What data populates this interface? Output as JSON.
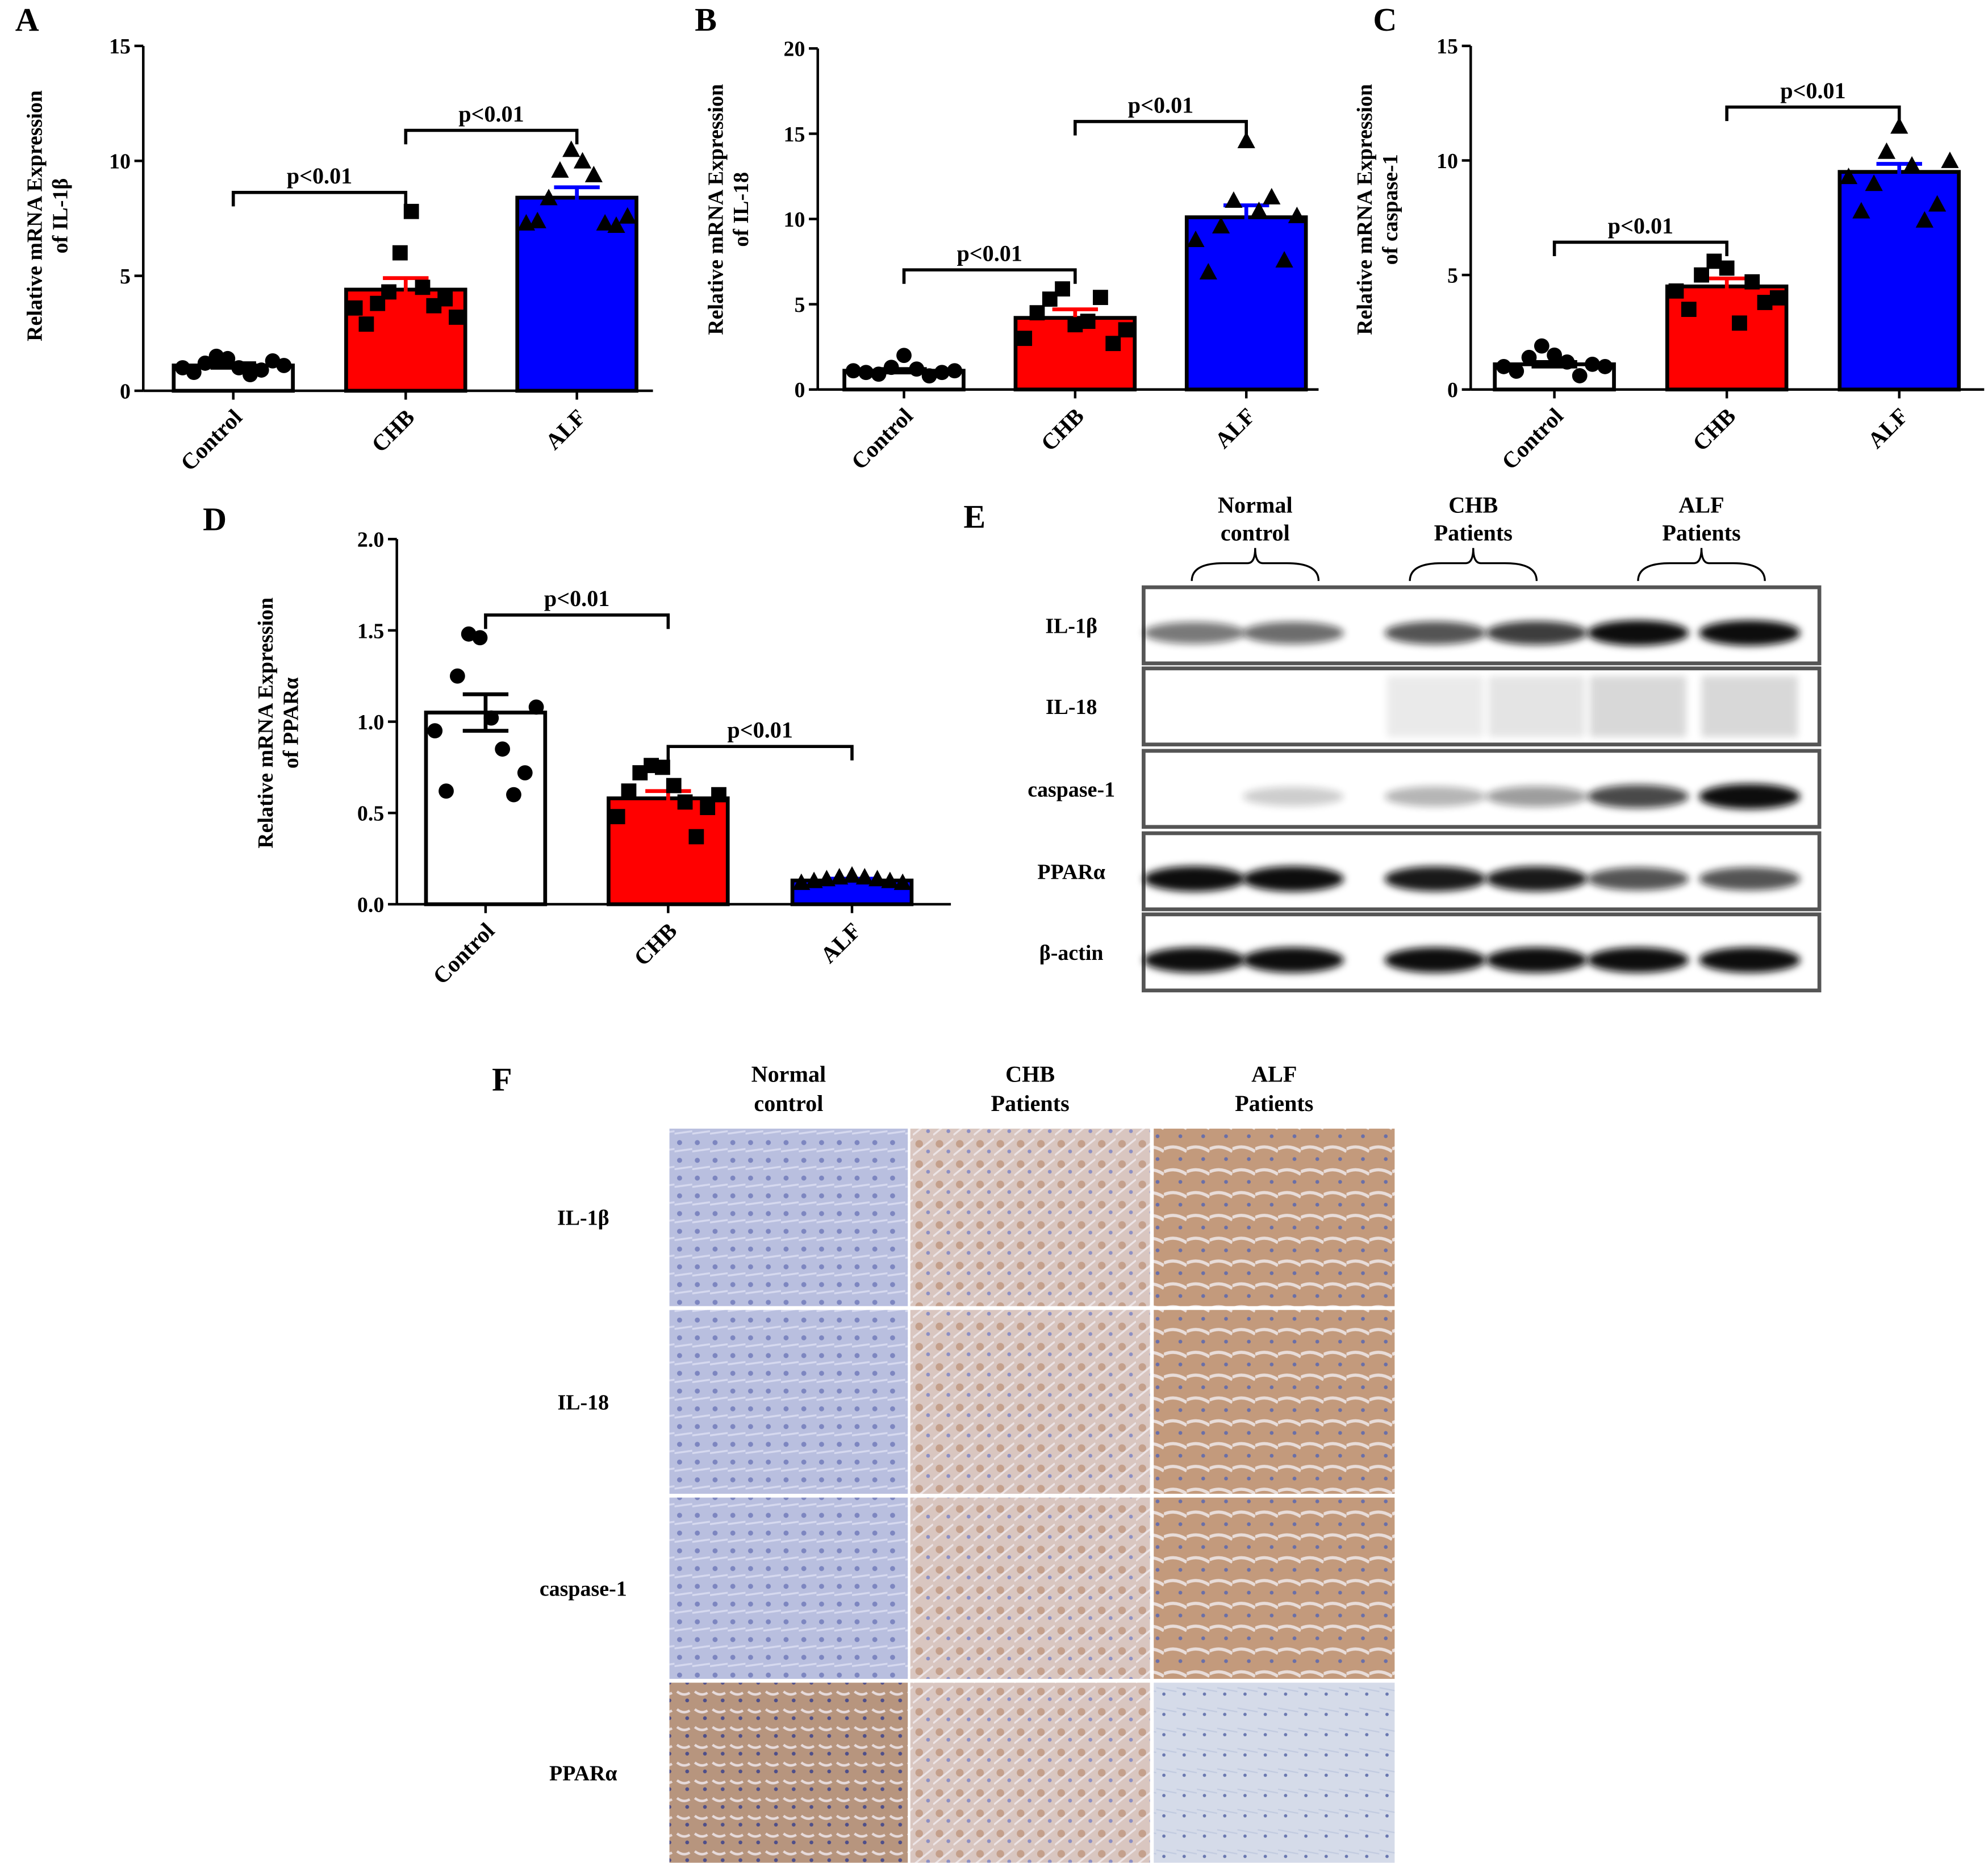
{
  "chart_data": [
    {
      "type": "bar",
      "label": "A",
      "ylabel": [
        "Relative mRNA Expression",
        "of IL-1β"
      ],
      "categories": [
        "Control",
        "CHB",
        "ALF"
      ],
      "values": [
        1.1,
        4.4,
        8.4
      ],
      "errors": [
        0.1,
        0.5,
        0.45
      ],
      "colors": [
        "#ffffff",
        "#ff0000",
        "#0000ff"
      ],
      "markers": [
        "circle",
        "square",
        "triangle"
      ],
      "points": [
        [
          1.0,
          0.8,
          1.2,
          1.5,
          1.4,
          1.0,
          0.7,
          0.9,
          1.3,
          1.1
        ],
        [
          3.6,
          2.9,
          3.8,
          4.3,
          6.0,
          7.8,
          4.5,
          3.7,
          4.0,
          3.2
        ],
        [
          7.3,
          7.4,
          8.4,
          9.6,
          10.5,
          10.0,
          9.4,
          7.3,
          7.2,
          7.6
        ]
      ],
      "ylim": [
        0,
        15
      ],
      "yticks": [
        0,
        5,
        10,
        15
      ],
      "annotations": [
        {
          "between": [
            0,
            1
          ],
          "label": "p<0.01"
        },
        {
          "between": [
            1,
            2
          ],
          "label": "p<0.01"
        }
      ]
    },
    {
      "type": "bar",
      "label": "B",
      "ylabel": [
        "Relative mRNA Expression",
        "of IL-18"
      ],
      "categories": [
        "Control",
        "CHB",
        "ALF"
      ],
      "values": [
        1.1,
        4.2,
        10.1
      ],
      "errors": [
        0.1,
        0.5,
        0.7
      ],
      "colors": [
        "#ffffff",
        "#ff0000",
        "#0000ff"
      ],
      "markers": [
        "circle",
        "square",
        "triangle"
      ],
      "points": [
        [
          1.1,
          1.0,
          0.9,
          1.3,
          2.0,
          1.2,
          0.8,
          1.0,
          1.1
        ],
        [
          3.0,
          4.5,
          5.3,
          5.9,
          3.8,
          4.0,
          5.4,
          2.7,
          3.5
        ],
        [
          8.8,
          6.9,
          9.6,
          11.1,
          14.6,
          10.5,
          11.3,
          7.6,
          10.2
        ]
      ],
      "ylim": [
        0,
        20
      ],
      "yticks": [
        0,
        5,
        10,
        15,
        20
      ],
      "annotations": [
        {
          "between": [
            0,
            1
          ],
          "label": "p<0.01"
        },
        {
          "between": [
            1,
            2
          ],
          "label": "p<0.01"
        }
      ]
    },
    {
      "type": "bar",
      "label": "C",
      "ylabel": [
        "Relative mRNA Expression",
        "of caspase-1"
      ],
      "categories": [
        "Control",
        "CHB",
        "ALF"
      ],
      "values": [
        1.1,
        4.5,
        9.5
      ],
      "errors": [
        0.1,
        0.35,
        0.35
      ],
      "colors": [
        "#ffffff",
        "#ff0000",
        "#0000ff"
      ],
      "markers": [
        "circle",
        "square",
        "triangle"
      ],
      "points": [
        [
          1.0,
          0.8,
          1.4,
          1.9,
          1.5,
          1.2,
          0.6,
          1.1,
          1.0
        ],
        [
          4.3,
          3.5,
          5.0,
          5.6,
          5.3,
          2.9,
          4.7,
          3.8,
          4.0
        ],
        [
          9.3,
          7.8,
          9.0,
          10.4,
          11.5,
          9.8,
          7.4,
          8.1,
          10.0
        ]
      ],
      "ylim": [
        0,
        15
      ],
      "yticks": [
        0,
        5,
        10,
        15
      ],
      "annotations": [
        {
          "between": [
            0,
            1
          ],
          "label": "p<0.01"
        },
        {
          "between": [
            1,
            2
          ],
          "label": "p<0.01"
        }
      ]
    },
    {
      "type": "bar",
      "label": "D",
      "ylabel": [
        "Relative mRNA Expression",
        "of PPARα"
      ],
      "categories": [
        "Control",
        "CHB",
        "ALF"
      ],
      "values": [
        1.05,
        0.58,
        0.13
      ],
      "errors": [
        0.1,
        0.04,
        0.01
      ],
      "colors": [
        "#ffffff",
        "#ff0000",
        "#0000ff"
      ],
      "markers": [
        "circle",
        "square",
        "triangle"
      ],
      "points": [
        [
          0.95,
          0.62,
          1.25,
          1.48,
          1.46,
          1.02,
          0.85,
          0.6,
          0.72,
          1.08
        ],
        [
          0.48,
          0.62,
          0.72,
          0.76,
          0.75,
          0.65,
          0.56,
          0.37,
          0.53,
          0.6
        ],
        [
          0.12,
          0.13,
          0.14,
          0.15,
          0.16,
          0.15,
          0.14,
          0.13,
          0.12
        ]
      ],
      "ylim": [
        0,
        2
      ],
      "yticks": [
        {
          "value": 0,
          "label": "0.0"
        },
        0.5,
        {
          "value": 1,
          "label": "1.0"
        },
        1.5,
        {
          "value": 2,
          "label": "2.0"
        }
      ],
      "annotations": [
        {
          "between": [
            0,
            1
          ],
          "label": "p<0.01"
        },
        {
          "between": [
            1,
            2
          ],
          "label": "p<0.01"
        }
      ]
    }
  ],
  "western_blot": {
    "label": "E",
    "groups": [
      [
        "Normal",
        "control"
      ],
      [
        "CHB",
        "Patients"
      ],
      [
        "ALF",
        "Patients"
      ]
    ],
    "rows": [
      "IL-1β",
      "IL-18",
      "caspase-1",
      "PPARα",
      "β-actin"
    ]
  },
  "ihc": {
    "label": "F",
    "groups": [
      [
        "Normal",
        "control"
      ],
      [
        "CHB",
        "Patients"
      ],
      [
        "ALF",
        "Patients"
      ]
    ],
    "rows": [
      "IL-1β",
      "IL-18",
      "caspase-1",
      "PPARα"
    ]
  }
}
